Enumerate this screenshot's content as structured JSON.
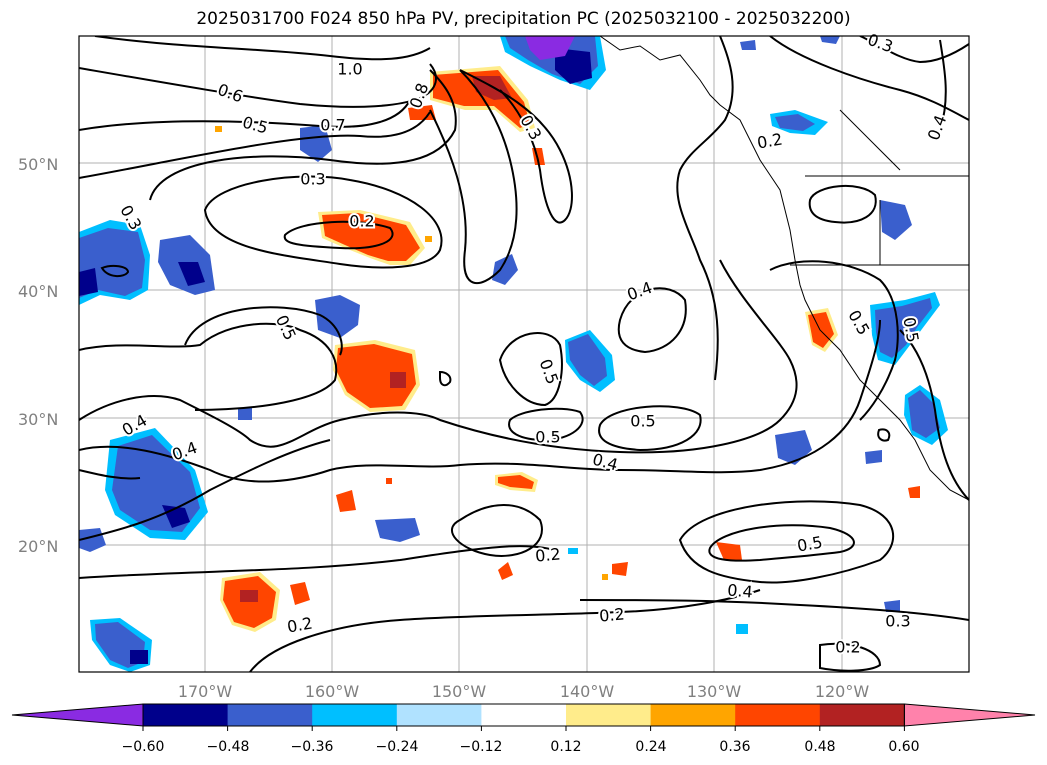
{
  "title": "2025031700 F024 850 hPa PV, precipitation PC (2025032100 - 2025032200)",
  "map": {
    "lat_ticks": [
      "50°N",
      "40°N",
      "30°N",
      "20°N"
    ],
    "lon_ticks": [
      "170°W",
      "160°W",
      "150°W",
      "140°W",
      "130°W",
      "120°W"
    ],
    "contour_labels": [
      "1.0",
      "0.6",
      "0.5",
      "0.7",
      "0.8",
      "0.3",
      "0.3",
      "0.2",
      "0.2",
      "0.3",
      "0.4",
      "0.5",
      "0.5",
      "0.4",
      "0.4",
      "0.5",
      "0.5",
      "0.4",
      "0.5",
      "0.5",
      "0.2",
      "0.5",
      "0.4",
      "0.2",
      "0.3",
      "0.2",
      "0.2",
      "0.3",
      "0.4"
    ]
  },
  "colorbar": {
    "labels": [
      "−0.60",
      "−0.48",
      "−0.36",
      "−0.24",
      "−0.12",
      "0.12",
      "0.24",
      "0.36",
      "0.48",
      "0.60"
    ],
    "colors": [
      "#8a2be2",
      "#00008b",
      "#3a5fcd",
      "#00bfff",
      "#b0e2ff",
      "#ffffff",
      "#ffec8b",
      "#ffa500",
      "#ff4500",
      "#b22222",
      "#ff82ab"
    ]
  }
}
